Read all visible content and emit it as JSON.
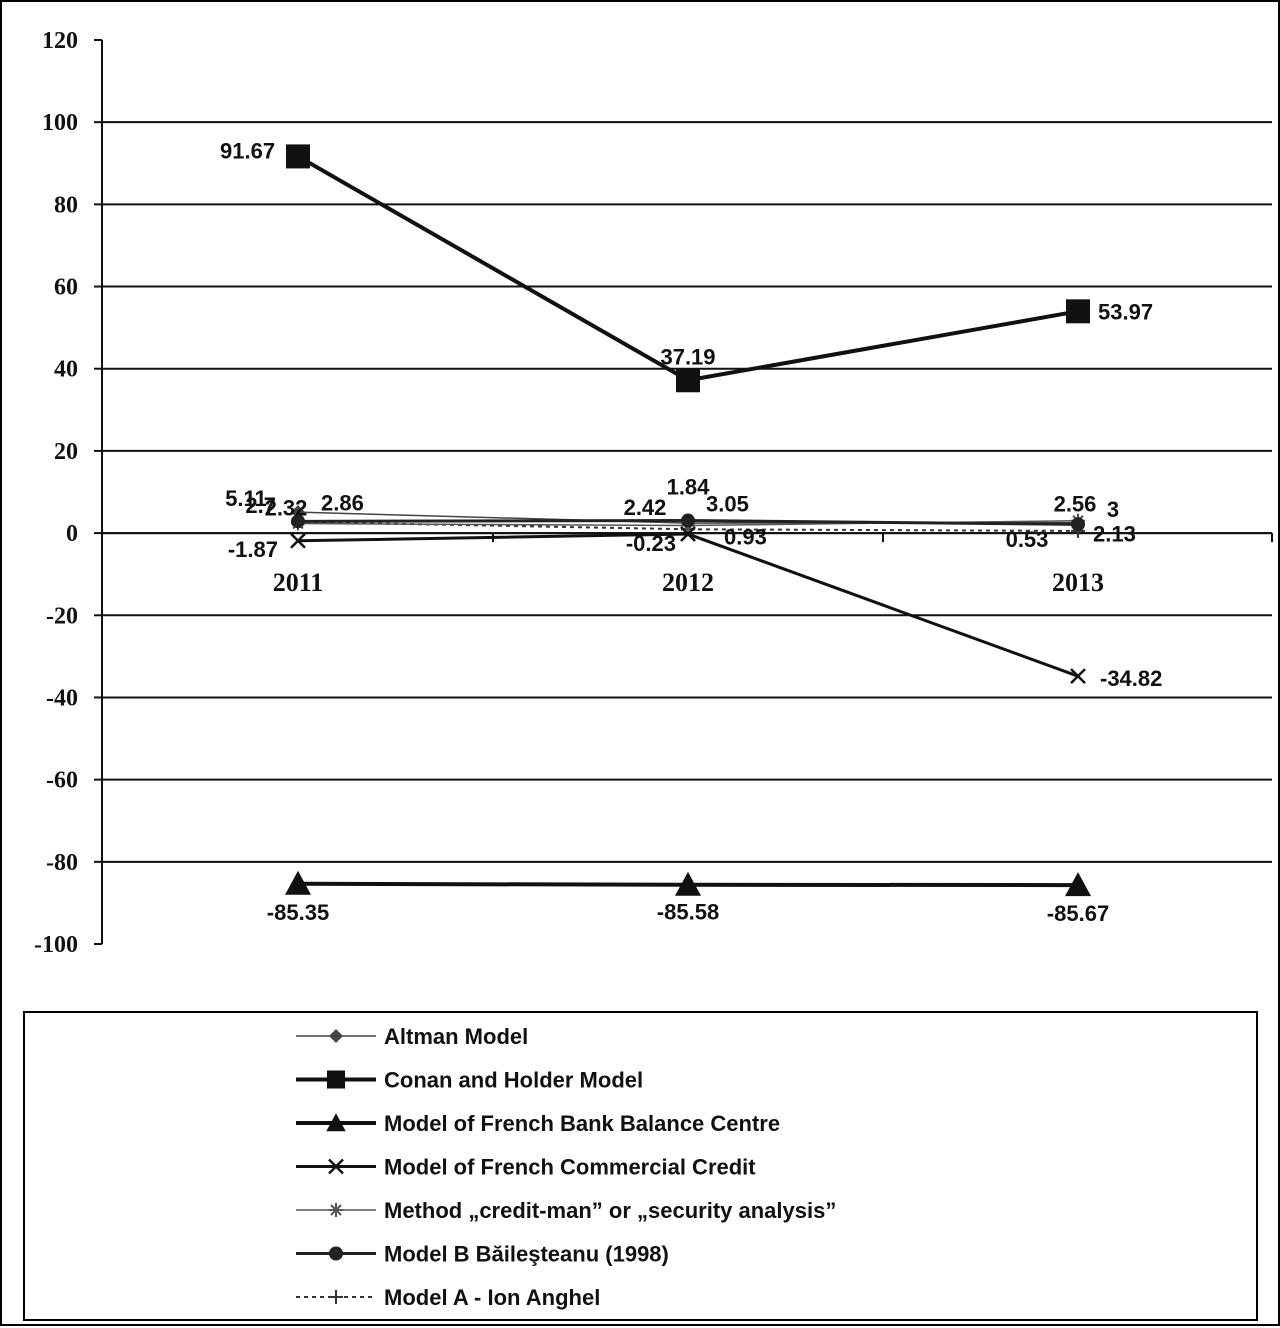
{
  "chart_data": {
    "type": "line",
    "title": "",
    "xlabel": "",
    "ylabel": "",
    "categories": [
      "2011",
      "2012",
      "2013"
    ],
    "ylim": [
      -100,
      120
    ],
    "yticks": [
      120,
      100,
      80,
      60,
      40,
      20,
      0,
      -20,
      -40,
      -60,
      -80,
      -100
    ],
    "grid": true,
    "legend_position": "bottom",
    "series": [
      {
        "name": "Altman Model",
        "values": [
          5.11,
          2.42,
          2.56
        ],
        "labels": [
          "5.11",
          "2.42",
          "2.56"
        ],
        "color": "#444444",
        "marker": "diamond",
        "line": "thin"
      },
      {
        "name": "Conan and Holder Model",
        "values": [
          91.67,
          37.19,
          53.97
        ],
        "labels": [
          "91.67",
          "37.19",
          "53.97"
        ],
        "color": "#111111",
        "marker": "square",
        "line": "thick"
      },
      {
        "name": "Model of French Bank Balance Centre",
        "values": [
          -85.35,
          -85.58,
          -85.67
        ],
        "labels": [
          "-85.35",
          "-85.58",
          "-85.67"
        ],
        "color": "#111111",
        "marker": "triangle",
        "line": "thick"
      },
      {
        "name": "Model of French Commercial Credit",
        "values": [
          -1.87,
          -0.23,
          -34.82
        ],
        "labels": [
          "-1.87",
          "-0.23",
          "-34.82"
        ],
        "color": "#111111",
        "marker": "x",
        "line": "medium"
      },
      {
        "name": "Method „credit-man” or „security analysis”",
        "values": [
          2.32,
          1.84,
          3
        ],
        "labels": [
          "2.32",
          "1.84",
          "3"
        ],
        "color": "#555555",
        "marker": "star",
        "line": "thin"
      },
      {
        "name": "Model B  Băileşteanu (1998)",
        "values": [
          2.86,
          3.05,
          2.13
        ],
        "labels": [
          "2.86",
          "3.05",
          "2.13"
        ],
        "color": "#222222",
        "marker": "circle",
        "line": "medium"
      },
      {
        "name": "Model A - Ion Anghel",
        "values": [
          2.7,
          0.93,
          0.53
        ],
        "labels": [
          "2.7",
          "0.93",
          "0.53"
        ],
        "color": "#333333",
        "marker": "plus",
        "line": "dotted"
      }
    ]
  }
}
